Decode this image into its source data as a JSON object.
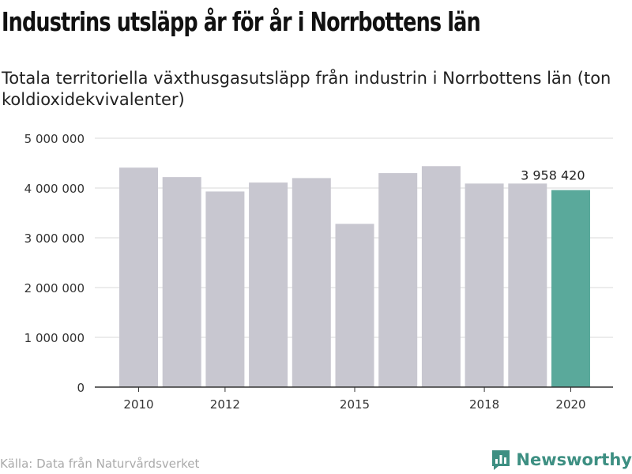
{
  "header": {
    "title": "Industrins utsläpp år för år i Norrbottens län",
    "subtitle": "Totala territoriella växthusgasutsläpp från industrin i Norrbottens län (ton koldioxidekvivalenter)"
  },
  "footer": {
    "source": "Källa: Data från Naturvårdsverket",
    "brand": "Newsworthy",
    "brand_icon": "bar-chart-speech-icon"
  },
  "colors": {
    "bar": "#c8c7d0",
    "highlight": "#5aa99b",
    "grid": "#d9d9d9",
    "brand": "#3d8f82"
  },
  "chart_data": {
    "type": "bar",
    "x": [
      2010,
      2011,
      2012,
      2013,
      2014,
      2015,
      2016,
      2017,
      2018,
      2019,
      2020
    ],
    "values": [
      4410000,
      4220000,
      3930000,
      4110000,
      4200000,
      3280000,
      4300000,
      4440000,
      4090000,
      4090000,
      3958420
    ],
    "xticks": [
      "2010",
      "2012",
      "2015",
      "2018",
      "2020"
    ],
    "yticks": [
      "0",
      "1 000 000",
      "2 000 000",
      "3 000 000",
      "4 000 000",
      "5 000 000"
    ],
    "ylim": [
      0,
      5000000
    ],
    "highlight_index": 10,
    "data_label": "3 958 420",
    "grid": true
  }
}
